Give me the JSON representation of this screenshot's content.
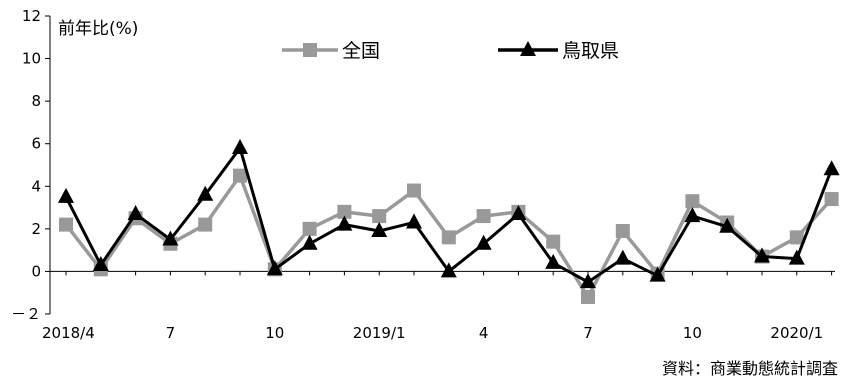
{
  "chart_data": {
    "type": "line",
    "y_unit_label": "前年比(%)",
    "source_note": "資料：商業動態統計調査",
    "x": [
      "2018/4",
      "2018/5",
      "2018/6",
      "2018/7",
      "2018/8",
      "2018/9",
      "2018/10",
      "2018/11",
      "2018/12",
      "2019/1",
      "2019/2",
      "2019/3",
      "2019/4",
      "2019/5",
      "2019/6",
      "2019/7",
      "2019/8",
      "2019/9",
      "2019/10",
      "2019/11",
      "2019/12",
      "2020/1",
      "2020/2"
    ],
    "x_tick_labels": [
      {
        "index": 0,
        "label": "2018/4"
      },
      {
        "index": 3,
        "label": "7"
      },
      {
        "index": 6,
        "label": "10"
      },
      {
        "index": 9,
        "label": "2019/1"
      },
      {
        "index": 12,
        "label": "4"
      },
      {
        "index": 15,
        "label": "7"
      },
      {
        "index": 18,
        "label": "10"
      },
      {
        "index": 21,
        "label": "2020/1"
      }
    ],
    "ylim": [
      -2,
      12
    ],
    "y_ticks": [
      "－２",
      "0",
      "2",
      "4",
      "6",
      "8",
      "10",
      "12"
    ],
    "y_tick_values": [
      -2,
      0,
      2,
      4,
      6,
      8,
      10,
      12
    ],
    "grid": false,
    "legend_position": "top",
    "series": [
      {
        "name": "全国",
        "color": "#999999",
        "marker": "square",
        "values": [
          2.2,
          0.1,
          2.5,
          1.3,
          2.2,
          4.5,
          0.1,
          2.0,
          2.8,
          2.6,
          3.8,
          1.6,
          2.6,
          2.8,
          1.4,
          -1.2,
          1.9,
          -0.1,
          3.3,
          2.3,
          0.7,
          1.6,
          3.4
        ]
      },
      {
        "name": "鳥取県",
        "color": "#000000",
        "marker": "triangle",
        "values": [
          3.5,
          0.3,
          2.7,
          1.5,
          3.6,
          5.8,
          0.1,
          1.3,
          2.2,
          1.9,
          2.3,
          0.0,
          1.3,
          2.7,
          0.4,
          -0.5,
          0.6,
          -0.2,
          2.6,
          2.1,
          0.7,
          0.6,
          4.8
        ]
      }
    ]
  }
}
